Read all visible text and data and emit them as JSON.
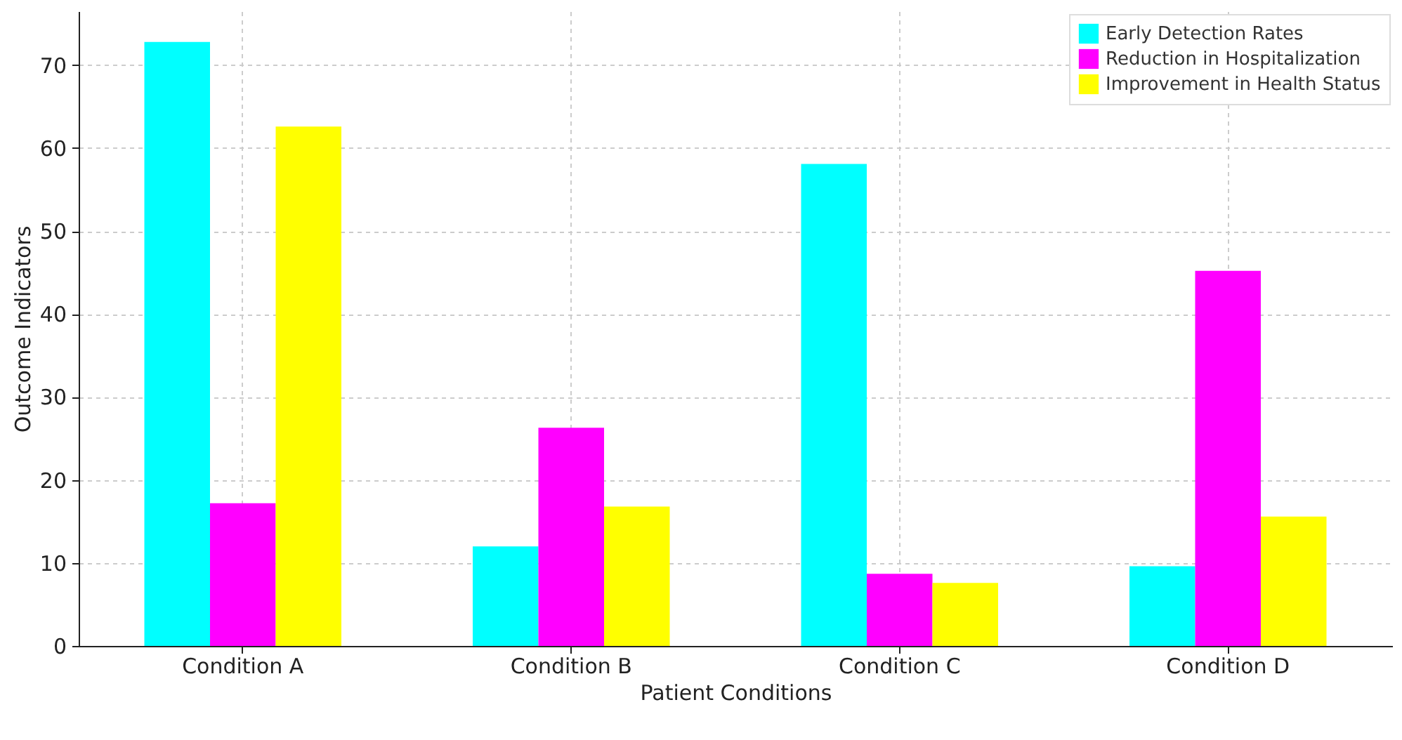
{
  "chart_data": {
    "type": "bar",
    "xlabel": "Patient Conditions",
    "ylabel": "Outcome Indicators",
    "categories": [
      "Condition A",
      "Condition B",
      "Condition C",
      "Condition D"
    ],
    "series": [
      {
        "name": "Early Detection Rates",
        "color": "#00ffff",
        "values": [
          72.8,
          12.0,
          58.1,
          9.6
        ]
      },
      {
        "name": "Reduction in Hospitalization",
        "color": "#ff00ff",
        "values": [
          17.2,
          26.3,
          8.7,
          45.2
        ]
      },
      {
        "name": "Improvement in Health Status",
        "color": "#ffff00",
        "values": [
          62.6,
          16.8,
          7.6,
          15.6
        ]
      }
    ],
    "ylim": [
      0,
      76.5
    ],
    "yticks": [
      0,
      10,
      20,
      30,
      40,
      50,
      60,
      70
    ],
    "grid": true,
    "legend": "top right"
  }
}
